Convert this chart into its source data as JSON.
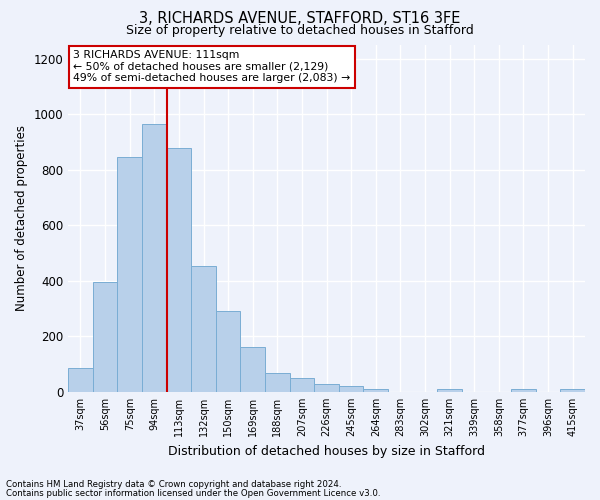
{
  "title1": "3, RICHARDS AVENUE, STAFFORD, ST16 3FE",
  "title2": "Size of property relative to detached houses in Stafford",
  "xlabel": "Distribution of detached houses by size in Stafford",
  "ylabel": "Number of detached properties",
  "categories": [
    "37sqm",
    "56sqm",
    "75sqm",
    "94sqm",
    "113sqm",
    "132sqm",
    "150sqm",
    "169sqm",
    "188sqm",
    "207sqm",
    "226sqm",
    "245sqm",
    "264sqm",
    "283sqm",
    "302sqm",
    "321sqm",
    "339sqm",
    "358sqm",
    "377sqm",
    "396sqm",
    "415sqm"
  ],
  "values": [
    85,
    395,
    845,
    965,
    880,
    455,
    290,
    163,
    68,
    50,
    30,
    22,
    12,
    0,
    0,
    10,
    0,
    0,
    12,
    0,
    12
  ],
  "bar_color": "#b8d0ea",
  "bar_edge_color": "#7aadd4",
  "vline_color": "#cc0000",
  "annotation_text": "3 RICHARDS AVENUE: 111sqm\n← 50% of detached houses are smaller (2,129)\n49% of semi-detached houses are larger (2,083) →",
  "annotation_box_color": "#ffffff",
  "annotation_box_edge": "#cc0000",
  "footnote1": "Contains HM Land Registry data © Crown copyright and database right 2024.",
  "footnote2": "Contains public sector information licensed under the Open Government Licence v3.0.",
  "ylim": [
    0,
    1250
  ],
  "yticks": [
    0,
    200,
    400,
    600,
    800,
    1000,
    1200
  ],
  "bg_color": "#eef2fb",
  "plot_bg_color": "#eef2fb",
  "grid_color": "#ffffff",
  "vline_index": 4
}
